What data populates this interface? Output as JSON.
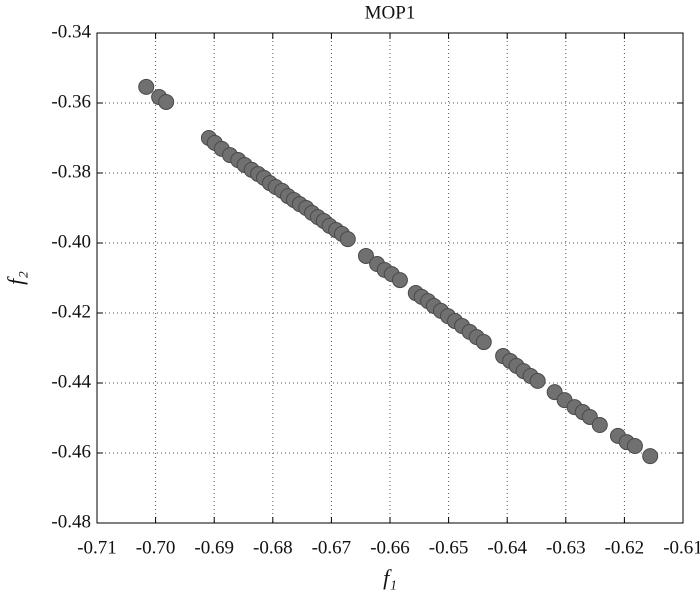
{
  "chart_data": {
    "type": "scatter",
    "title": "MOP1",
    "xlabel": "f₁",
    "ylabel": "f₂",
    "xlim": [
      -0.71,
      -0.61
    ],
    "ylim": [
      -0.48,
      -0.34
    ],
    "xticks": [
      -0.71,
      {
        "value": -0.7,
        "label": "-0.70"
      },
      -0.69,
      -0.68,
      -0.67,
      -0.66,
      -0.65,
      -0.64,
      -0.63,
      -0.62,
      -0.61
    ],
    "yticks": [
      -0.48,
      -0.46,
      -0.44,
      -0.42,
      {
        "value": -0.4,
        "label": "-0.40"
      },
      -0.38,
      -0.36,
      -0.34
    ],
    "grid": true,
    "color": "#707070",
    "x": [
      -0.7016,
      -0.6994,
      -0.6982,
      -0.6909,
      -0.6899,
      -0.6887,
      -0.6873,
      -0.6859,
      -0.6848,
      -0.6836,
      -0.6825,
      -0.6815,
      -0.6805,
      -0.6795,
      -0.6784,
      -0.6774,
      -0.6764,
      -0.6754,
      -0.6743,
      -0.6733,
      -0.6723,
      -0.6713,
      -0.6703,
      -0.6692,
      -0.6682,
      -0.6672,
      -0.6641,
      -0.6622,
      -0.6609,
      -0.6597,
      -0.6583,
      -0.6556,
      -0.6546,
      -0.6535,
      -0.6525,
      -0.6513,
      -0.6501,
      -0.6489,
      -0.6477,
      -0.6464,
      -0.6452,
      -0.644,
      -0.6407,
      -0.6395,
      -0.6384,
      -0.6372,
      -0.636,
      -0.6348,
      -0.6319,
      -0.6302,
      -0.6285,
      -0.6271,
      -0.6259,
      -0.6242,
      -0.6211,
      -0.6196,
      -0.6182,
      -0.6156
    ],
    "values": [
      -0.3554,
      -0.3583,
      -0.3597,
      -0.37,
      -0.3714,
      -0.3731,
      -0.3749,
      -0.3763,
      -0.3777,
      -0.3791,
      -0.3803,
      -0.3814,
      -0.3829,
      -0.384,
      -0.3851,
      -0.3866,
      -0.3877,
      -0.3889,
      -0.39,
      -0.3914,
      -0.3926,
      -0.3937,
      -0.3951,
      -0.3963,
      -0.3974,
      -0.3989,
      -0.4037,
      -0.406,
      -0.4077,
      -0.4089,
      -0.4106,
      -0.4143,
      -0.4154,
      -0.4166,
      -0.418,
      -0.4194,
      -0.4209,
      -0.4223,
      -0.4237,
      -0.4254,
      -0.4269,
      -0.4283,
      -0.4323,
      -0.4337,
      -0.4351,
      -0.4366,
      -0.438,
      -0.4394,
      -0.4426,
      -0.4449,
      -0.4469,
      -0.4483,
      -0.4497,
      -0.452,
      -0.4551,
      -0.4569,
      -0.458,
      -0.4609
    ]
  }
}
